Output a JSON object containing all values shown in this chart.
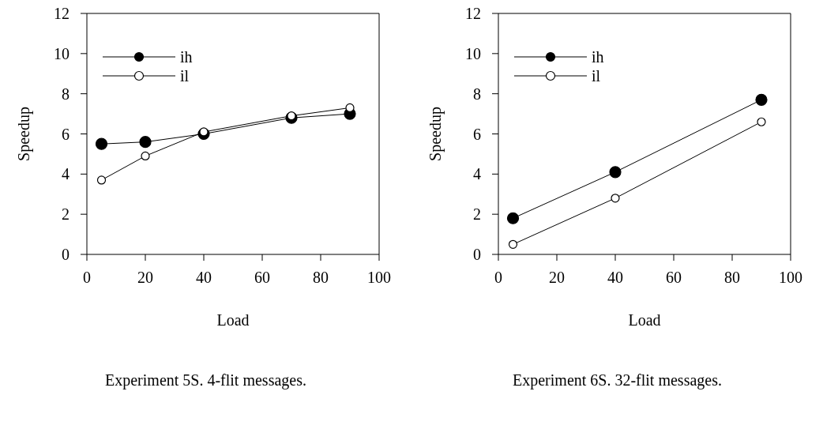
{
  "chart_data": [
    {
      "type": "line",
      "xlabel": "Load",
      "ylabel": "Speedup",
      "xlim": [
        0,
        100
      ],
      "xticks": [
        0,
        20,
        40,
        60,
        80,
        100
      ],
      "ylim": [
        0,
        12
      ],
      "yticks": [
        0,
        2,
        4,
        6,
        8,
        10,
        12
      ],
      "legend": "top left",
      "marker": "circle",
      "grid": false,
      "annotations": [
        "Experiment 5S. 4-flit messages."
      ],
      "series": [
        {
          "name": "ih",
          "color": "#000000",
          "x": [
            5,
            20,
            40,
            70,
            90
          ],
          "values": [
            5.5,
            5.6,
            6.0,
            6.8,
            7.0
          ]
        },
        {
          "name": "il",
          "color": "#000000",
          "x": [
            5,
            20,
            40,
            70,
            90
          ],
          "values": [
            3.7,
            4.9,
            6.1,
            6.9,
            7.3
          ]
        }
      ]
    },
    {
      "type": "line",
      "xlabel": "Load",
      "ylabel": "Speedup",
      "xlim": [
        0,
        100
      ],
      "xticks": [
        0,
        20,
        40,
        60,
        80,
        100
      ],
      "ylim": [
        0,
        12
      ],
      "yticks": [
        0,
        2,
        4,
        6,
        8,
        10,
        12
      ],
      "legend": "top left",
      "marker": "circle",
      "grid": false,
      "annotations": [
        "Experiment 6S. 32-flit messages."
      ],
      "series": [
        {
          "name": "ih",
          "color": "#000000",
          "x": [
            5,
            40,
            90
          ],
          "values": [
            1.8,
            4.1,
            7.7
          ]
        },
        {
          "name": "il",
          "color": "#000000",
          "x": [
            5,
            40,
            90
          ],
          "values": [
            0.5,
            2.8,
            6.6
          ]
        }
      ]
    }
  ]
}
